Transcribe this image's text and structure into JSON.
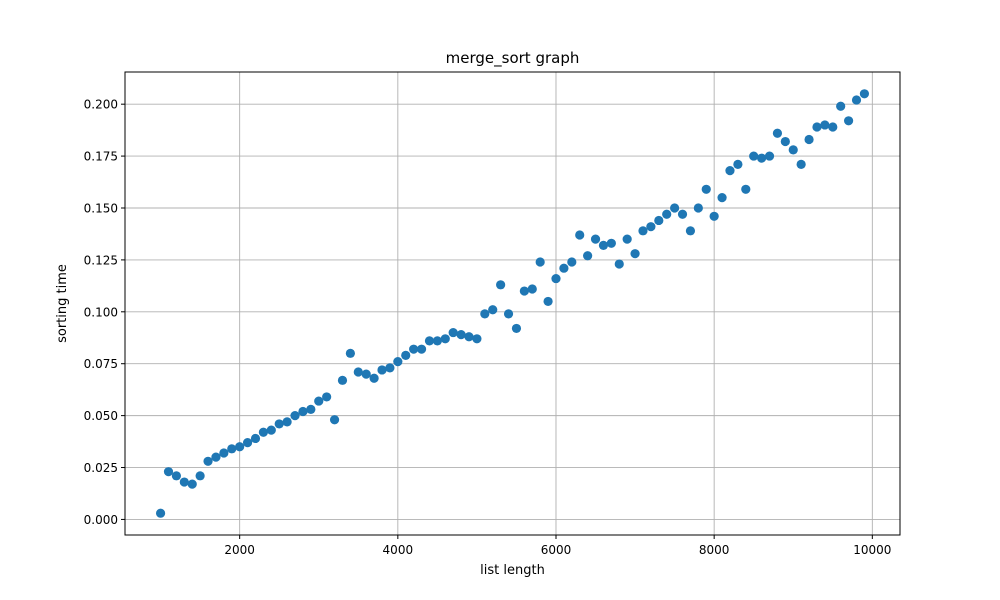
{
  "chart_data": {
    "type": "scatter",
    "title": "merge_sort graph",
    "xlabel": "list length",
    "ylabel": "sorting time",
    "xlim": [
      550,
      10350
    ],
    "ylim": [
      -0.0075,
      0.2155
    ],
    "xticks": [
      2000,
      4000,
      6000,
      8000,
      10000
    ],
    "xtick_labels": [
      "2000",
      "4000",
      "6000",
      "8000",
      "10000"
    ],
    "yticks": [
      0.0,
      0.025,
      0.05,
      0.075,
      0.1,
      0.125,
      0.15,
      0.175,
      0.2
    ],
    "ytick_labels": [
      "0.000",
      "0.025",
      "0.050",
      "0.075",
      "0.100",
      "0.125",
      "0.150",
      "0.175",
      "0.200"
    ],
    "grid": true,
    "marker_color": "#1f77b4",
    "x": [
      1000,
      1100,
      1200,
      1300,
      1400,
      1500,
      1600,
      1700,
      1800,
      1900,
      2000,
      2100,
      2200,
      2300,
      2400,
      2500,
      2600,
      2700,
      2800,
      2900,
      3000,
      3100,
      3200,
      3300,
      3400,
      3500,
      3600,
      3700,
      3800,
      3900,
      4000,
      4100,
      4200,
      4300,
      4400,
      4500,
      4600,
      4700,
      4800,
      4900,
      5000,
      5100,
      5200,
      5300,
      5400,
      5500,
      5600,
      5700,
      5800,
      5900,
      6000,
      6100,
      6200,
      6300,
      6400,
      6500,
      6600,
      6700,
      6800,
      6900,
      7000,
      7100,
      7200,
      7300,
      7400,
      7500,
      7600,
      7700,
      7800,
      7900,
      8000,
      8100,
      8200,
      8300,
      8400,
      8500,
      8600,
      8700,
      8800,
      8900,
      9000,
      9100,
      9200,
      9300,
      9400,
      9500,
      9600,
      9700,
      9800,
      9900
    ],
    "y": [
      0.003,
      0.023,
      0.021,
      0.018,
      0.017,
      0.021,
      0.028,
      0.03,
      0.032,
      0.034,
      0.035,
      0.037,
      0.039,
      0.042,
      0.043,
      0.046,
      0.047,
      0.05,
      0.052,
      0.053,
      0.057,
      0.059,
      0.048,
      0.067,
      0.08,
      0.071,
      0.07,
      0.068,
      0.072,
      0.073,
      0.076,
      0.079,
      0.082,
      0.082,
      0.086,
      0.086,
      0.087,
      0.09,
      0.089,
      0.088,
      0.087,
      0.099,
      0.101,
      0.113,
      0.099,
      0.092,
      0.11,
      0.111,
      0.124,
      0.105,
      0.116,
      0.121,
      0.124,
      0.137,
      0.127,
      0.135,
      0.132,
      0.133,
      0.123,
      0.135,
      0.128,
      0.139,
      0.141,
      0.144,
      0.147,
      0.15,
      0.147,
      0.139,
      0.15,
      0.159,
      0.146,
      0.155,
      0.168,
      0.171,
      0.159,
      0.175,
      0.174,
      0.175,
      0.186,
      0.182,
      0.178,
      0.171,
      0.183,
      0.189,
      0.19,
      0.189,
      0.199,
      0.192,
      0.202,
      0.205
    ]
  }
}
